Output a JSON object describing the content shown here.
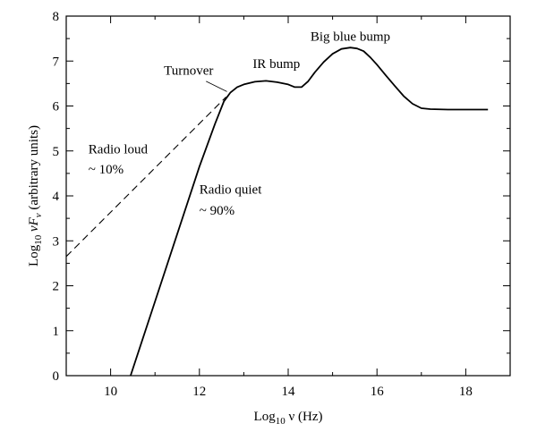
{
  "chart_data": {
    "type": "line",
    "xlabel": {
      "main": "Log",
      "sub": "10",
      "rest": " ν (Hz)"
    },
    "ylabel": {
      "main": "Log",
      "sub": "10",
      "mid": " νF",
      "sub2": "ν",
      "rest": " (arbitrary units)"
    },
    "xlim": [
      9,
      19
    ],
    "ylim": [
      0,
      8
    ],
    "x_ticks": [
      10,
      12,
      14,
      16,
      18
    ],
    "y_ticks": [
      0,
      1,
      2,
      3,
      4,
      5,
      6,
      7,
      8
    ],
    "x_tick_labels": [
      "10",
      "12",
      "14",
      "16",
      "18"
    ],
    "y_tick_labels": [
      "0",
      "1",
      "2",
      "3",
      "4",
      "5",
      "6",
      "7",
      "8"
    ],
    "grid": false,
    "legend": "none",
    "series": [
      {
        "style": "solid",
        "x": [
          10.45,
          11.0,
          11.5,
          12.0,
          12.35,
          12.55,
          12.7,
          12.85,
          13.0,
          13.25,
          13.5,
          13.75,
          14.0,
          14.15,
          14.3,
          14.45,
          14.6,
          14.8,
          15.0,
          15.2,
          15.4,
          15.55,
          15.7,
          15.85,
          16.0,
          16.2,
          16.4,
          16.6,
          16.8,
          17.0,
          17.2,
          17.6,
          18.0,
          18.5
        ],
        "y": [
          0.0,
          1.65,
          3.15,
          4.65,
          5.6,
          6.1,
          6.3,
          6.42,
          6.48,
          6.54,
          6.56,
          6.53,
          6.48,
          6.42,
          6.42,
          6.55,
          6.75,
          6.98,
          7.16,
          7.27,
          7.3,
          7.28,
          7.22,
          7.08,
          6.92,
          6.68,
          6.45,
          6.22,
          6.05,
          5.95,
          5.93,
          5.92,
          5.92,
          5.92
        ]
      },
      {
        "style": "dashed",
        "x": [
          9.0,
          12.6
        ],
        "y": [
          2.65,
          6.2
        ]
      }
    ],
    "annotations": [
      {
        "text": "Big blue bump",
        "x": 15.4,
        "y": 7.45
      },
      {
        "text": "IR bump",
        "x": 13.2,
        "y": 6.85
      },
      {
        "text": "Turnover",
        "x": 11.2,
        "y": 6.7
      },
      {
        "text": "Radio loud",
        "x": 9.5,
        "y": 4.95
      },
      {
        "text": "~ 10%",
        "x": 9.5,
        "y": 4.5
      },
      {
        "text": "Radio quiet",
        "x": 12.0,
        "y": 4.05
      },
      {
        "text": "~ 90%",
        "x": 12.0,
        "y": 3.58
      }
    ],
    "pointer": {
      "from": [
        12.15,
        6.55
      ],
      "to": [
        12.62,
        6.32
      ]
    }
  }
}
